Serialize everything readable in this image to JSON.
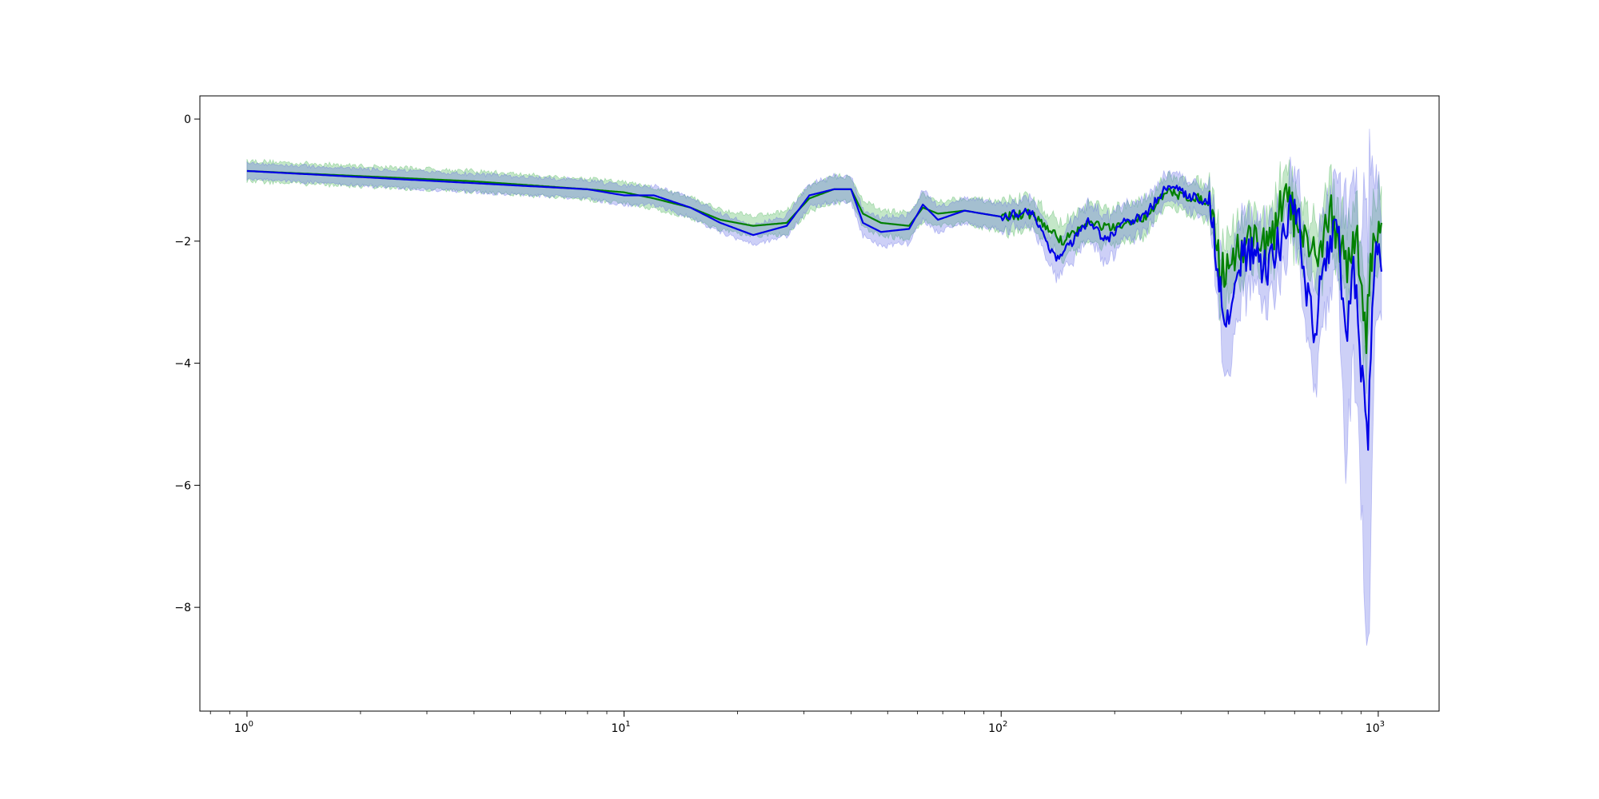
{
  "chart_data": {
    "type": "line",
    "title": "",
    "xlabel": "",
    "ylabel": "",
    "x_scale": "log",
    "xlim": [
      0.75,
      1450
    ],
    "ylim": [
      -9.7,
      0.38
    ],
    "grid": false,
    "legend": "none",
    "x_ticks": [
      {
        "value": 1,
        "base": "10",
        "exp": "0"
      },
      {
        "value": 10,
        "base": "10",
        "exp": "1"
      },
      {
        "value": 100,
        "base": "10",
        "exp": "2"
      },
      {
        "value": 1000,
        "base": "10",
        "exp": "3"
      }
    ],
    "y_ticks": [
      {
        "value": 0,
        "label": "0"
      },
      {
        "value": -2,
        "label": "−2"
      },
      {
        "value": -4,
        "label": "−4"
      },
      {
        "value": -6,
        "label": "−6"
      },
      {
        "value": -8,
        "label": "−8"
      }
    ],
    "series": [
      {
        "color": "#008000",
        "band_color": "#3cb04a",
        "x": [
          1,
          4,
          8,
          10,
          12,
          15,
          18,
          22,
          27,
          31,
          36,
          40,
          43,
          48,
          57,
          62,
          68,
          80,
          100,
          120,
          145,
          170,
          200,
          240,
          275,
          330,
          360,
          380,
          420,
          470,
          520,
          570,
          620,
          680,
          750,
          820,
          880,
          930,
          970,
          1020
        ],
        "y": [
          -0.85,
          -1.02,
          -1.15,
          -1.2,
          -1.3,
          -1.45,
          -1.65,
          -1.75,
          -1.7,
          -1.3,
          -1.15,
          -1.15,
          -1.55,
          -1.7,
          -1.75,
          -1.45,
          -1.55,
          -1.5,
          -1.6,
          -1.55,
          -2.0,
          -1.7,
          -1.8,
          -1.6,
          -1.2,
          -1.3,
          -1.35,
          -2.5,
          -2.2,
          -1.9,
          -2.1,
          -1.1,
          -2.0,
          -2.3,
          -1.5,
          -2.4,
          -2.0,
          -3.5,
          -1.9,
          -1.7
        ],
        "band": [
          0.16,
          0.16,
          0.16,
          0.16,
          0.16,
          0.16,
          0.16,
          0.16,
          0.18,
          0.2,
          0.2,
          0.2,
          0.2,
          0.2,
          0.2,
          0.2,
          0.2,
          0.2,
          0.22,
          0.24,
          0.25,
          0.28,
          0.28,
          0.26,
          0.24,
          0.25,
          0.28,
          0.5,
          0.45,
          0.4,
          0.4,
          0.4,
          0.45,
          0.5,
          0.5,
          0.55,
          0.55,
          0.6,
          0.6,
          0.6
        ]
      },
      {
        "color": "#0000e6",
        "band_color": "#5b62e6",
        "x": [
          1,
          4,
          8,
          10,
          12,
          15,
          18,
          22,
          27,
          31,
          36,
          40,
          43,
          48,
          57,
          62,
          68,
          80,
          100,
          120,
          140,
          150,
          170,
          190,
          210,
          240,
          275,
          330,
          360,
          375,
          395,
          420,
          450,
          500,
          550,
          600,
          640,
          680,
          720,
          780,
          820,
          860,
          900,
          940,
          980,
          1020
        ],
        "y": [
          -0.85,
          -1.05,
          -1.15,
          -1.25,
          -1.25,
          -1.45,
          -1.7,
          -1.9,
          -1.75,
          -1.25,
          -1.15,
          -1.15,
          -1.7,
          -1.85,
          -1.8,
          -1.4,
          -1.65,
          -1.5,
          -1.6,
          -1.5,
          -2.3,
          -2.1,
          -1.7,
          -2.0,
          -1.7,
          -1.6,
          -1.1,
          -1.3,
          -1.35,
          -2.6,
          -3.3,
          -2.4,
          -2.2,
          -2.5,
          -2.0,
          -1.2,
          -2.6,
          -3.6,
          -2.2,
          -1.7,
          -3.8,
          -2.4,
          -4.0,
          -5.1,
          -2.2,
          -2.5
        ],
        "band": [
          0.12,
          0.14,
          0.14,
          0.15,
          0.15,
          0.15,
          0.15,
          0.15,
          0.16,
          0.18,
          0.2,
          0.2,
          0.2,
          0.22,
          0.22,
          0.22,
          0.2,
          0.2,
          0.2,
          0.22,
          0.3,
          0.3,
          0.3,
          0.35,
          0.3,
          0.25,
          0.2,
          0.22,
          0.25,
          0.5,
          0.9,
          0.7,
          0.6,
          0.6,
          0.5,
          0.5,
          0.6,
          0.9,
          0.8,
          0.7,
          2.0,
          1.2,
          2.0,
          3.8,
          1.2,
          0.8
        ]
      }
    ]
  }
}
